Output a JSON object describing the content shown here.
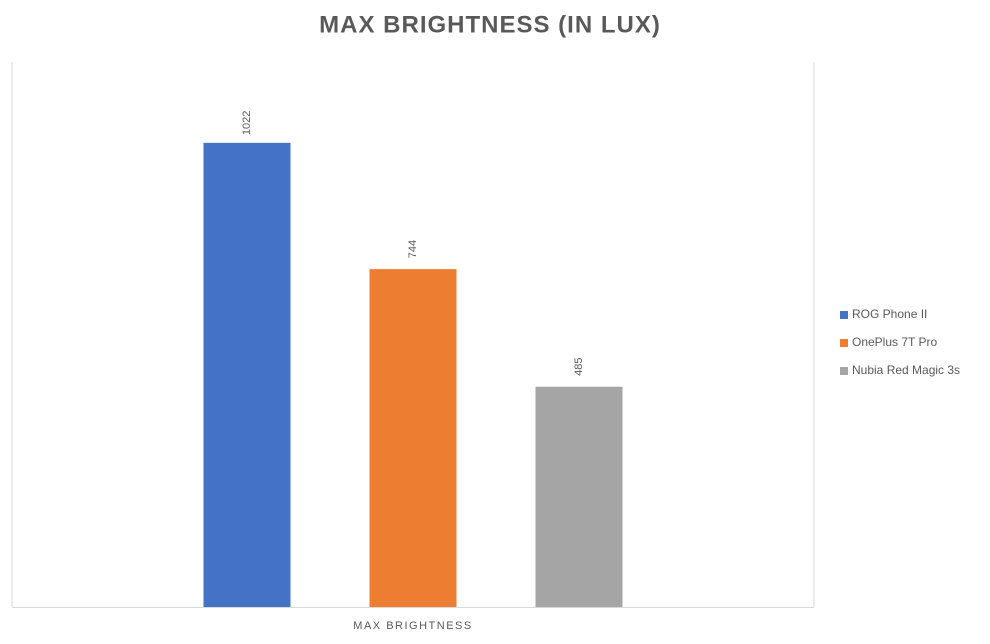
{
  "chart_data": {
    "type": "bar",
    "title": "MAX BRIGHTNESS (IN LUX)",
    "categories": [
      "MAX BRIGHTNESS"
    ],
    "series": [
      {
        "name": "ROG Phone II",
        "color": "#4472c4",
        "values": [
          1022
        ]
      },
      {
        "name": "OnePlus 7T Pro",
        "color": "#ed7d31",
        "values": [
          744
        ]
      },
      {
        "name": "Nubia Red Magic 3s",
        "color": "#a5a5a5",
        "values": [
          485
        ]
      }
    ],
    "ylim": [
      0,
      1200
    ],
    "grid": false,
    "legend": "right"
  }
}
